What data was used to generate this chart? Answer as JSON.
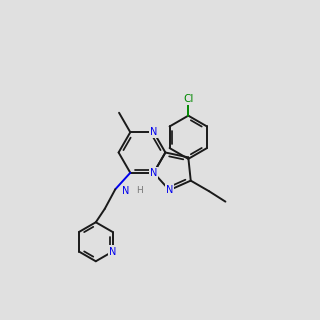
{
  "bg_color": "#e0e0e0",
  "bond_color": "#1a1a1a",
  "n_color": "#0000ee",
  "cl_color": "#008800",
  "h_color": "#777777",
  "lw": 1.4,
  "dbo": 0.08
}
